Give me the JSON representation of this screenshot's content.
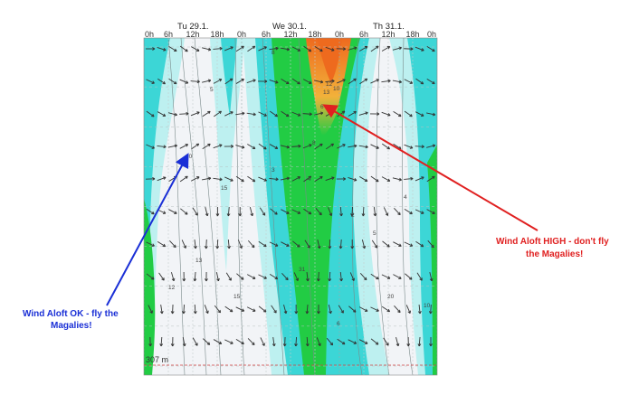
{
  "chart_data": {
    "type": "heatmap",
    "day_labels": [
      "Tu 29.1.",
      "We 30.1.",
      "Th 31.1."
    ],
    "hour_ticks": [
      "0h",
      "6h",
      "12h",
      "18h",
      "0h",
      "6h",
      "12h",
      "18h",
      "0h",
      "6h",
      "12h",
      "18h",
      "0h"
    ],
    "level_label": "307 m",
    "annotations": [
      {
        "lines": [
          "Wind Aloft OK - fly the",
          "Magalies!"
        ],
        "color": "#1a2fd6"
      },
      {
        "lines": [
          "Wind Aloft HIGH - don't fly",
          "the Magalies!"
        ],
        "color": "#e02020"
      }
    ],
    "contour_values": [
      "5",
      "20",
      "15",
      "13",
      "12",
      "10",
      "8",
      "6",
      "4",
      "3",
      "2",
      "31"
    ],
    "colors": {
      "calm": "#f2f4f7",
      "light": "#bdf0f0",
      "moderate": "#3cd6d6",
      "fresh": "#22cc44",
      "strong": "#f2b13a",
      "very_strong": "#ee6a1e"
    }
  }
}
